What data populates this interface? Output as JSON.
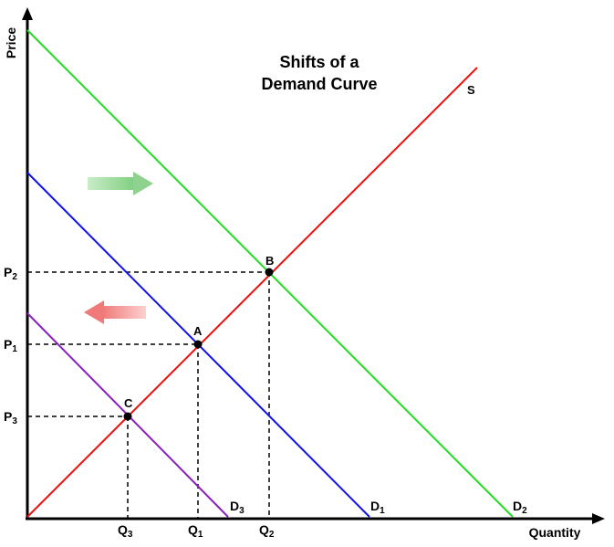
{
  "title_line1": "Shifts of a",
  "title_line2": "Demand Curve",
  "axes": {
    "x_label": "Quantity",
    "y_label": "Price"
  },
  "supply_label": "S",
  "demand_curves": [
    {
      "id": "D1",
      "base": "D",
      "sub": "1",
      "color": "#1010ee"
    },
    {
      "id": "D2",
      "base": "D",
      "sub": "2",
      "color": "#22dd22"
    },
    {
      "id": "D3",
      "base": "D",
      "sub": "3",
      "color": "#8a1fc0"
    }
  ],
  "supply_color": "#ee1010",
  "points": [
    {
      "label": "A",
      "price": "P",
      "price_sub": "1",
      "qty": "Q",
      "qty_sub": "1"
    },
    {
      "label": "B",
      "price": "P",
      "price_sub": "2",
      "qty": "Q",
      "qty_sub": "2"
    },
    {
      "label": "C",
      "price": "P",
      "price_sub": "3",
      "qty": "Q",
      "qty_sub": "3"
    }
  ],
  "arrows": [
    {
      "id": "increase",
      "direction": "right",
      "color": "#8fd18f"
    },
    {
      "id": "decrease",
      "direction": "left",
      "color": "#f08a8a"
    }
  ]
}
